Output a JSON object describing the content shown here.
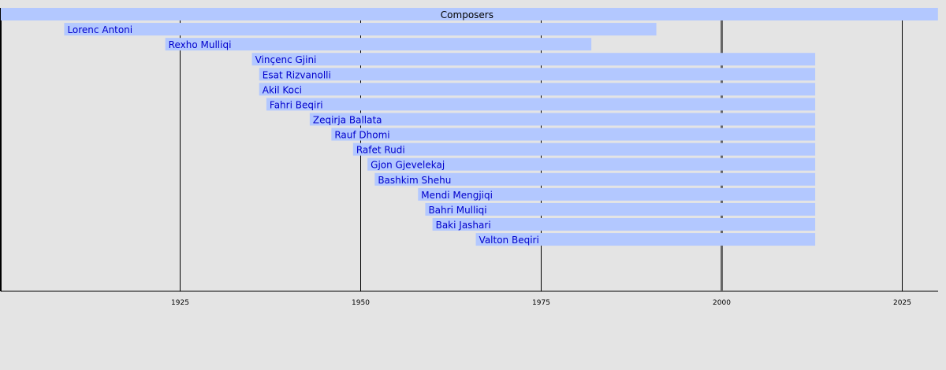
{
  "chart_data": {
    "type": "timeline",
    "title": "",
    "header": {
      "label": "Composers",
      "start": 1900,
      "end": 2030
    },
    "x_range": [
      1900,
      2030
    ],
    "x_ticks": [
      "1925",
      "1950",
      "1975",
      "2000",
      "2025"
    ],
    "current_year": 2000,
    "grid": true,
    "items": [
      {
        "name": "Lorenc Antoni",
        "start": 1909,
        "end": 1991
      },
      {
        "name": "Rexho Mulliqi",
        "start": 1923,
        "end": 1982
      },
      {
        "name": "Vinçenc Gjini",
        "start": 1935,
        "end": 2013
      },
      {
        "name": "Esat Rizvanolli",
        "start": 1936,
        "end": 2013
      },
      {
        "name": "Akil Koci",
        "start": 1936,
        "end": 2013
      },
      {
        "name": "Fahri Beqiri",
        "start": 1937,
        "end": 2013
      },
      {
        "name": "Zeqirja Ballata",
        "start": 1943,
        "end": 2013
      },
      {
        "name": "Rauf Dhomi",
        "start": 1946,
        "end": 2013
      },
      {
        "name": "Rafet Rudi",
        "start": 1949,
        "end": 2013
      },
      {
        "name": "Gjon Gjevelekaj",
        "start": 1951,
        "end": 2013
      },
      {
        "name": "Bashkim Shehu",
        "start": 1952,
        "end": 2013
      },
      {
        "name": "Mendi Mengjiqi",
        "start": 1958,
        "end": 2013
      },
      {
        "name": "Bahri Mulliqi",
        "start": 1959,
        "end": 2013
      },
      {
        "name": "Baki Jashari",
        "start": 1960,
        "end": 2013
      },
      {
        "name": "Valton Beqiri",
        "start": 1966,
        "end": 2013
      }
    ],
    "colors": {
      "background": "#e4e4e4",
      "bar": "#b3c8ff",
      "bar_label": "#0000cc",
      "grid": "#000000",
      "current_year_line": "#666666"
    }
  }
}
